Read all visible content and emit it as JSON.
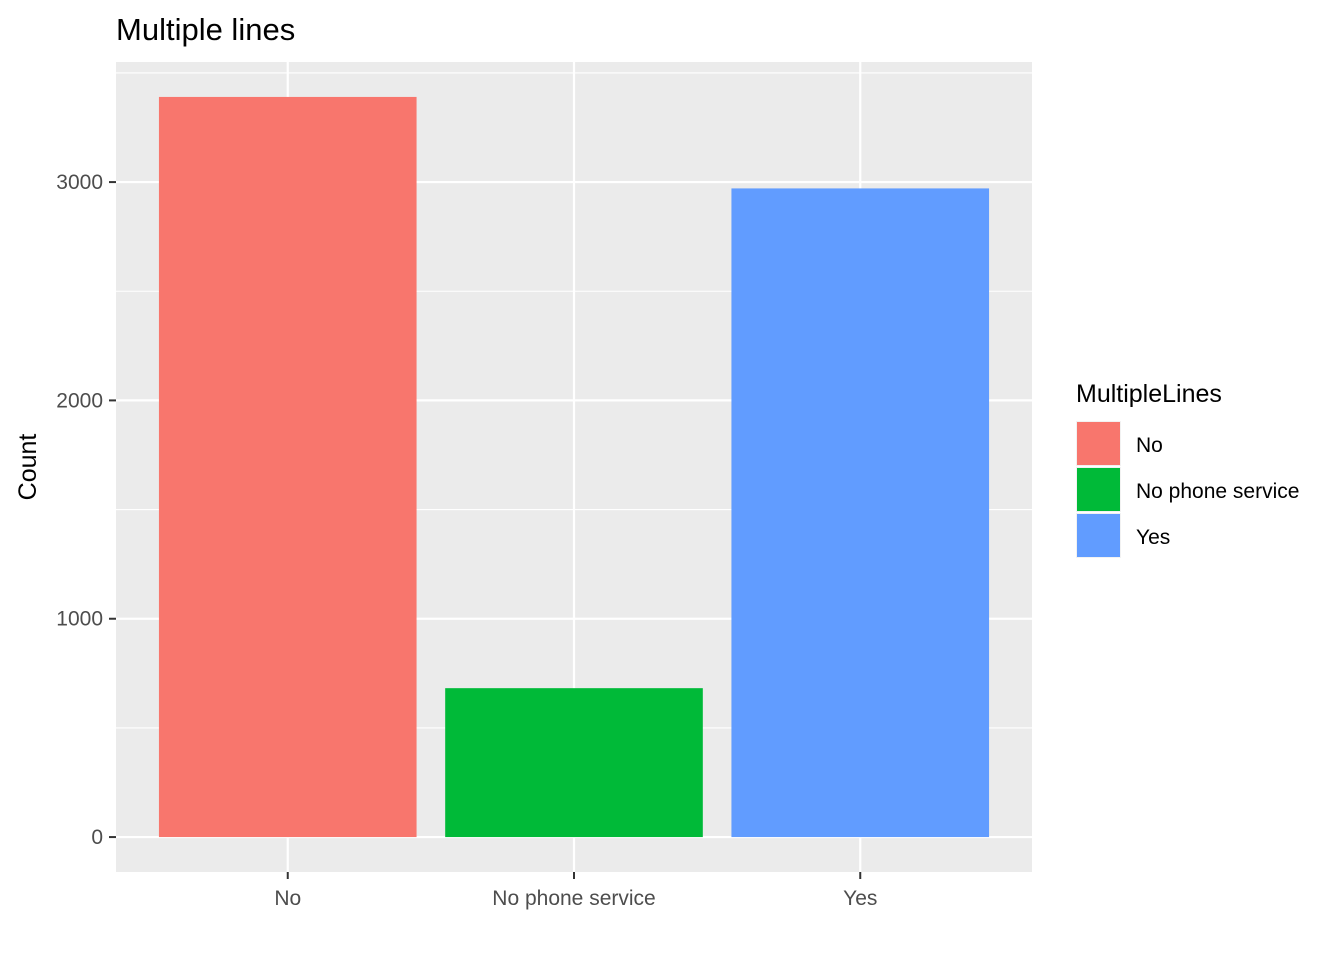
{
  "chart_data": {
    "type": "bar",
    "title": "Multiple lines",
    "xlabel": "",
    "ylabel": "Count",
    "categories": [
      "No",
      "No phone service",
      "Yes"
    ],
    "values": [
      3390,
      682,
      2971
    ],
    "colors": [
      "#F8766D",
      "#00BA38",
      "#619CFF"
    ],
    "ylim": [
      -160,
      3550
    ],
    "yticks": [
      0,
      1000,
      2000,
      3000
    ],
    "grid": true,
    "legend": {
      "title": "MultipleLines",
      "placement": "right",
      "entries": [
        "No",
        "No phone service",
        "Yes"
      ]
    }
  }
}
